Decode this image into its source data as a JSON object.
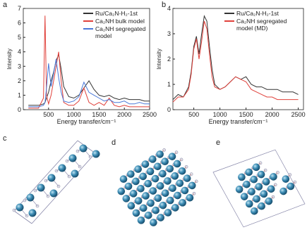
{
  "chart_data": [
    {
      "type": "line",
      "panel": "a",
      "xlabel": "Energy transfer/cm⁻¹",
      "ylabel": "Intensity",
      "xlim": [
        0,
        2500
      ],
      "xticks": [
        500,
        1000,
        1500,
        2000,
        2500
      ],
      "ylim": [
        0,
        7
      ],
      "yticks": [
        0,
        1,
        2,
        3,
        4,
        5,
        6,
        7
      ],
      "x": [
        100,
        200,
        300,
        400,
        430,
        460,
        500,
        550,
        600,
        650,
        700,
        750,
        800,
        900,
        1000,
        1100,
        1200,
        1300,
        1400,
        1500,
        1600,
        1700,
        1800,
        1900,
        2000,
        2100,
        2200,
        2300,
        2400,
        2500
      ],
      "series": [
        {
          "name": "Ru/Ca₂N-H₂-1st",
          "color": "#333333",
          "values": [
            0.3,
            0.3,
            0.3,
            0.4,
            0.5,
            0.8,
            1.2,
            2.0,
            2.6,
            3.4,
            3.8,
            2.8,
            1.6,
            0.9,
            0.8,
            1.0,
            1.5,
            2.0,
            1.4,
            1.0,
            0.9,
            1.0,
            0.8,
            0.7,
            0.8,
            0.7,
            0.7,
            0.7,
            0.6,
            0.6
          ]
        },
        {
          "name": "Ca₂NH bulk model",
          "color": "#e0403a",
          "values": [
            0.1,
            0.1,
            0.1,
            0.8,
            6.5,
            1.0,
            0.4,
            1.0,
            2.0,
            3.0,
            4.0,
            2.0,
            0.5,
            0.3,
            0.3,
            0.6,
            1.5,
            0.5,
            0.3,
            0.5,
            0.3,
            0.8,
            0.3,
            0.2,
            0.3,
            0.2,
            0.2,
            0.2,
            0.2,
            0.2
          ]
        },
        {
          "name": "Ca₂NH segregated model",
          "color": "#4a78d8",
          "values": [
            0.2,
            0.2,
            0.2,
            0.3,
            0.5,
            1.5,
            3.2,
            1.6,
            2.5,
            3.5,
            2.2,
            1.2,
            0.6,
            0.5,
            0.6,
            0.9,
            1.9,
            1.2,
            1.0,
            0.8,
            0.6,
            0.7,
            0.5,
            0.5,
            0.6,
            0.4,
            0.4,
            0.5,
            0.4,
            0.4
          ]
        }
      ]
    },
    {
      "type": "line",
      "panel": "b",
      "xlabel": "Energy transfer/cm⁻¹",
      "ylabel": "Intensity",
      "xlim": [
        100,
        2600
      ],
      "xticks": [
        500,
        1000,
        1500,
        2000,
        2500
      ],
      "ylim": [
        0,
        4
      ],
      "yticks": [
        0,
        1,
        2,
        3,
        4
      ],
      "x": [
        100,
        200,
        300,
        400,
        450,
        500,
        550,
        600,
        650,
        700,
        750,
        800,
        850,
        900,
        1000,
        1100,
        1200,
        1300,
        1400,
        1500,
        1600,
        1700,
        1800,
        1900,
        2000,
        2100,
        2200,
        2300,
        2400,
        2500
      ],
      "series": [
        {
          "name": "Ru/Ca₂N-H₂-1st",
          "color": "#333333",
          "values": [
            0.4,
            0.6,
            0.5,
            0.9,
            1.5,
            2.5,
            2.9,
            2.2,
            3.0,
            3.7,
            3.5,
            2.5,
            1.6,
            1.0,
            0.8,
            0.9,
            1.1,
            1.3,
            1.2,
            1.3,
            1.0,
            0.9,
            0.9,
            0.8,
            0.8,
            0.8,
            0.7,
            0.7,
            0.7,
            0.6
          ]
        },
        {
          "name": "Ca₂NH segregated model (MD)",
          "color": "#e0403a",
          "values": [
            0.3,
            0.5,
            0.5,
            0.8,
            1.4,
            2.4,
            2.8,
            2.0,
            2.7,
            3.5,
            3.2,
            2.2,
            1.3,
            0.9,
            0.8,
            0.9,
            1.1,
            1.3,
            1.2,
            1.1,
            0.8,
            0.7,
            0.6,
            0.5,
            0.5,
            0.4,
            0.4,
            0.4,
            0.4,
            0.4
          ]
        }
      ]
    }
  ],
  "structure_panels": [
    {
      "label": "c"
    },
    {
      "label": "d"
    },
    {
      "label": "e"
    }
  ]
}
